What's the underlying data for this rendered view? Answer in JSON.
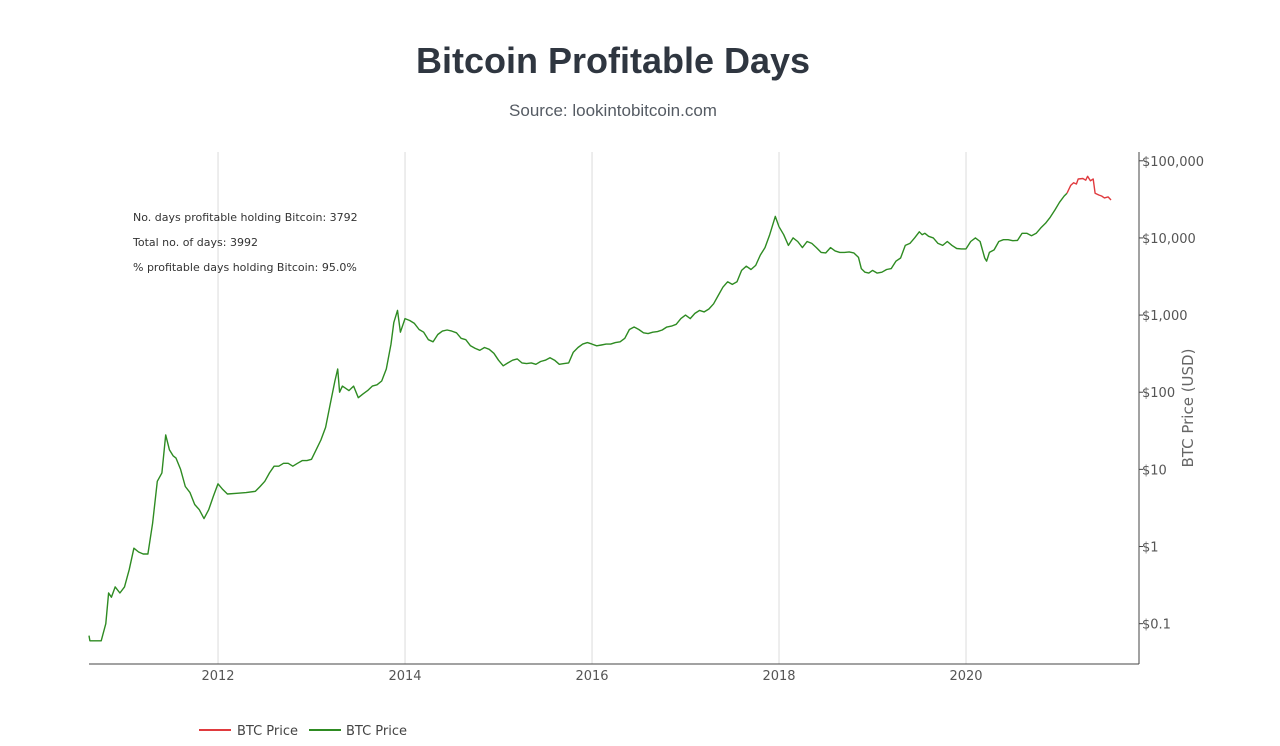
{
  "chart_data": {
    "type": "line",
    "title": "Bitcoin Profitable Days",
    "subtitle": "Source: lookintobitcoin.com",
    "ylabel": "BTC Price (USD)",
    "yscale": "log",
    "ylim": [
      0.03,
      130000
    ],
    "xlim": [
      2010.62,
      2021.85
    ],
    "x_ticks": [
      {
        "value": 2012,
        "label": "2012"
      },
      {
        "value": 2014,
        "label": "2014"
      },
      {
        "value": 2016,
        "label": "2016"
      },
      {
        "value": 2018,
        "label": "2018"
      },
      {
        "value": 2020,
        "label": "2020"
      }
    ],
    "y_ticks": [
      {
        "value": 0.1,
        "label": "$0.1"
      },
      {
        "value": 1,
        "label": "$1"
      },
      {
        "value": 10,
        "label": "$10"
      },
      {
        "value": 100,
        "label": "$100"
      },
      {
        "value": 1000,
        "label": "$1,000"
      },
      {
        "value": 10000,
        "label": "$10,000"
      },
      {
        "value": 100000,
        "label": "$100,000"
      }
    ],
    "annotations": [
      "No. days profitable holding Bitcoin: 3792",
      "Total no. of days: 3992",
      "% profitable days holding Bitcoin: 95.0%"
    ],
    "legend": {
      "position": "bottom-left"
    },
    "series": [
      {
        "name": "BTC Price",
        "color": "#e03a3e",
        "points": [
          [
            2021.08,
            38000
          ],
          [
            2021.12,
            48000
          ],
          [
            2021.15,
            52000
          ],
          [
            2021.18,
            50000
          ],
          [
            2021.2,
            58000
          ],
          [
            2021.25,
            59000
          ],
          [
            2021.28,
            56000
          ],
          [
            2021.3,
            63000
          ],
          [
            2021.33,
            55000
          ],
          [
            2021.36,
            58000
          ],
          [
            2021.38,
            38000
          ],
          [
            2021.42,
            36000
          ],
          [
            2021.45,
            35000
          ],
          [
            2021.48,
            33000
          ],
          [
            2021.52,
            34000
          ],
          [
            2021.55,
            31000
          ]
        ]
      },
      {
        "name": "BTC Price",
        "color": "#2e8b22",
        "points": [
          [
            2010.62,
            0.07
          ],
          [
            2010.63,
            0.06
          ],
          [
            2010.75,
            0.06
          ],
          [
            2010.8,
            0.1
          ],
          [
            2010.83,
            0.25
          ],
          [
            2010.86,
            0.22
          ],
          [
            2010.9,
            0.3
          ],
          [
            2010.95,
            0.25
          ],
          [
            2011.0,
            0.3
          ],
          [
            2011.05,
            0.5
          ],
          [
            2011.1,
            0.95
          ],
          [
            2011.15,
            0.85
          ],
          [
            2011.2,
            0.8
          ],
          [
            2011.25,
            0.8
          ],
          [
            2011.3,
            2.0
          ],
          [
            2011.35,
            7.0
          ],
          [
            2011.4,
            9.0
          ],
          [
            2011.44,
            28.0
          ],
          [
            2011.48,
            18.0
          ],
          [
            2011.52,
            15.0
          ],
          [
            2011.55,
            14.0
          ],
          [
            2011.6,
            10.0
          ],
          [
            2011.65,
            6.0
          ],
          [
            2011.7,
            5.0
          ],
          [
            2011.75,
            3.5
          ],
          [
            2011.8,
            3.0
          ],
          [
            2011.85,
            2.3
          ],
          [
            2011.9,
            3.0
          ],
          [
            2011.95,
            4.5
          ],
          [
            2012.0,
            6.5
          ],
          [
            2012.05,
            5.5
          ],
          [
            2012.1,
            4.8
          ],
          [
            2012.2,
            4.9
          ],
          [
            2012.3,
            5.0
          ],
          [
            2012.4,
            5.2
          ],
          [
            2012.45,
            6.0
          ],
          [
            2012.5,
            7.0
          ],
          [
            2012.55,
            9.0
          ],
          [
            2012.6,
            11.0
          ],
          [
            2012.65,
            11.0
          ],
          [
            2012.7,
            12.0
          ],
          [
            2012.75,
            12.0
          ],
          [
            2012.8,
            11.0
          ],
          [
            2012.85,
            12.0
          ],
          [
            2012.9,
            13.0
          ],
          [
            2012.95,
            13.0
          ],
          [
            2013.0,
            13.5
          ],
          [
            2013.05,
            18.0
          ],
          [
            2013.1,
            24.0
          ],
          [
            2013.15,
            35.0
          ],
          [
            2013.2,
            70.0
          ],
          [
            2013.25,
            140.0
          ],
          [
            2013.28,
            200.0
          ],
          [
            2013.3,
            100.0
          ],
          [
            2013.33,
            120.0
          ],
          [
            2013.4,
            105.0
          ],
          [
            2013.45,
            120.0
          ],
          [
            2013.5,
            85.0
          ],
          [
            2013.55,
            95.0
          ],
          [
            2013.6,
            105.0
          ],
          [
            2013.65,
            120.0
          ],
          [
            2013.7,
            125.0
          ],
          [
            2013.75,
            140.0
          ],
          [
            2013.8,
            200.0
          ],
          [
            2013.85,
            420.0
          ],
          [
            2013.88,
            800.0
          ],
          [
            2013.92,
            1150.0
          ],
          [
            2013.95,
            600.0
          ],
          [
            2014.0,
            900.0
          ],
          [
            2014.05,
            850.0
          ],
          [
            2014.1,
            780.0
          ],
          [
            2014.15,
            650.0
          ],
          [
            2014.2,
            600.0
          ],
          [
            2014.25,
            480.0
          ],
          [
            2014.3,
            450.0
          ],
          [
            2014.35,
            560.0
          ],
          [
            2014.4,
            620.0
          ],
          [
            2014.45,
            640.0
          ],
          [
            2014.5,
            620.0
          ],
          [
            2014.55,
            590.0
          ],
          [
            2014.6,
            500.0
          ],
          [
            2014.65,
            480.0
          ],
          [
            2014.7,
            400.0
          ],
          [
            2014.75,
            370.0
          ],
          [
            2014.8,
            350.0
          ],
          [
            2014.85,
            380.0
          ],
          [
            2014.9,
            360.0
          ],
          [
            2014.95,
            320.0
          ],
          [
            2015.0,
            260.0
          ],
          [
            2015.05,
            220.0
          ],
          [
            2015.1,
            240.0
          ],
          [
            2015.15,
            260.0
          ],
          [
            2015.2,
            270.0
          ],
          [
            2015.25,
            240.0
          ],
          [
            2015.3,
            235.0
          ],
          [
            2015.35,
            240.0
          ],
          [
            2015.4,
            230.0
          ],
          [
            2015.45,
            250.0
          ],
          [
            2015.5,
            260.0
          ],
          [
            2015.55,
            280.0
          ],
          [
            2015.6,
            260.0
          ],
          [
            2015.65,
            230.0
          ],
          [
            2015.7,
            235.0
          ],
          [
            2015.75,
            240.0
          ],
          [
            2015.8,
            330.0
          ],
          [
            2015.85,
            380.0
          ],
          [
            2015.9,
            420.0
          ],
          [
            2015.95,
            440.0
          ],
          [
            2016.0,
            420.0
          ],
          [
            2016.05,
            400.0
          ],
          [
            2016.1,
            410.0
          ],
          [
            2016.15,
            420.0
          ],
          [
            2016.2,
            420.0
          ],
          [
            2016.25,
            440.0
          ],
          [
            2016.3,
            450.0
          ],
          [
            2016.35,
            500.0
          ],
          [
            2016.4,
            650.0
          ],
          [
            2016.45,
            700.0
          ],
          [
            2016.5,
            650.0
          ],
          [
            2016.55,
            590.0
          ],
          [
            2016.6,
            575.0
          ],
          [
            2016.65,
            600.0
          ],
          [
            2016.7,
            610.0
          ],
          [
            2016.75,
            640.0
          ],
          [
            2016.8,
            700.0
          ],
          [
            2016.85,
            720.0
          ],
          [
            2016.9,
            760.0
          ],
          [
            2016.95,
            900.0
          ],
          [
            2017.0,
            1000.0
          ],
          [
            2017.05,
            900.0
          ],
          [
            2017.1,
            1050.0
          ],
          [
            2017.15,
            1150.0
          ],
          [
            2017.2,
            1100.0
          ],
          [
            2017.25,
            1200.0
          ],
          [
            2017.3,
            1400.0
          ],
          [
            2017.35,
            1800.0
          ],
          [
            2017.4,
            2300.0
          ],
          [
            2017.45,
            2700.0
          ],
          [
            2017.5,
            2500.0
          ],
          [
            2017.55,
            2700.0
          ],
          [
            2017.6,
            3800.0
          ],
          [
            2017.65,
            4300.0
          ],
          [
            2017.7,
            3900.0
          ],
          [
            2017.75,
            4400.0
          ],
          [
            2017.8,
            6000.0
          ],
          [
            2017.85,
            7500.0
          ],
          [
            2017.9,
            11000.0
          ],
          [
            2017.96,
            19000.0
          ],
          [
            2018.0,
            14000.0
          ],
          [
            2018.05,
            11000.0
          ],
          [
            2018.1,
            8000.0
          ],
          [
            2018.15,
            10000.0
          ],
          [
            2018.2,
            9000.0
          ],
          [
            2018.25,
            7500.0
          ],
          [
            2018.3,
            9000.0
          ],
          [
            2018.35,
            8500.0
          ],
          [
            2018.4,
            7500.0
          ],
          [
            2018.45,
            6500.0
          ],
          [
            2018.5,
            6400.0
          ],
          [
            2018.55,
            7500.0
          ],
          [
            2018.6,
            6800.0
          ],
          [
            2018.65,
            6500.0
          ],
          [
            2018.7,
            6500.0
          ],
          [
            2018.75,
            6600.0
          ],
          [
            2018.8,
            6400.0
          ],
          [
            2018.85,
            5600.0
          ],
          [
            2018.88,
            4000.0
          ],
          [
            2018.92,
            3600.0
          ],
          [
            2018.96,
            3500.0
          ],
          [
            2019.0,
            3800.0
          ],
          [
            2019.05,
            3500.0
          ],
          [
            2019.1,
            3600.0
          ],
          [
            2019.15,
            3900.0
          ],
          [
            2019.2,
            4000.0
          ],
          [
            2019.25,
            5000.0
          ],
          [
            2019.3,
            5500.0
          ],
          [
            2019.35,
            8000.0
          ],
          [
            2019.4,
            8500.0
          ],
          [
            2019.45,
            10000.0
          ],
          [
            2019.5,
            12000.0
          ],
          [
            2019.53,
            11000.0
          ],
          [
            2019.56,
            11500.0
          ],
          [
            2019.6,
            10500.0
          ],
          [
            2019.65,
            10000.0
          ],
          [
            2019.7,
            8500.0
          ],
          [
            2019.75,
            8000.0
          ],
          [
            2019.8,
            9000.0
          ],
          [
            2019.85,
            8000.0
          ],
          [
            2019.9,
            7300.0
          ],
          [
            2019.95,
            7200.0
          ],
          [
            2020.0,
            7200.0
          ],
          [
            2020.05,
            9000.0
          ],
          [
            2020.1,
            10000.0
          ],
          [
            2020.15,
            9000.0
          ],
          [
            2020.2,
            5500.0
          ],
          [
            2020.22,
            5000.0
          ],
          [
            2020.25,
            6500.0
          ],
          [
            2020.3,
            7000.0
          ],
          [
            2020.35,
            9000.0
          ],
          [
            2020.4,
            9500.0
          ],
          [
            2020.45,
            9500.0
          ],
          [
            2020.5,
            9200.0
          ],
          [
            2020.55,
            9300.0
          ],
          [
            2020.6,
            11500.0
          ],
          [
            2020.65,
            11500.0
          ],
          [
            2020.7,
            10700.0
          ],
          [
            2020.75,
            11500.0
          ],
          [
            2020.8,
            13500.0
          ],
          [
            2020.85,
            15500.0
          ],
          [
            2020.9,
            18500.0
          ],
          [
            2020.95,
            23000.0
          ],
          [
            2021.0,
            29000.0
          ],
          [
            2021.05,
            35000.0
          ],
          [
            2021.08,
            38000
          ]
        ]
      }
    ]
  }
}
